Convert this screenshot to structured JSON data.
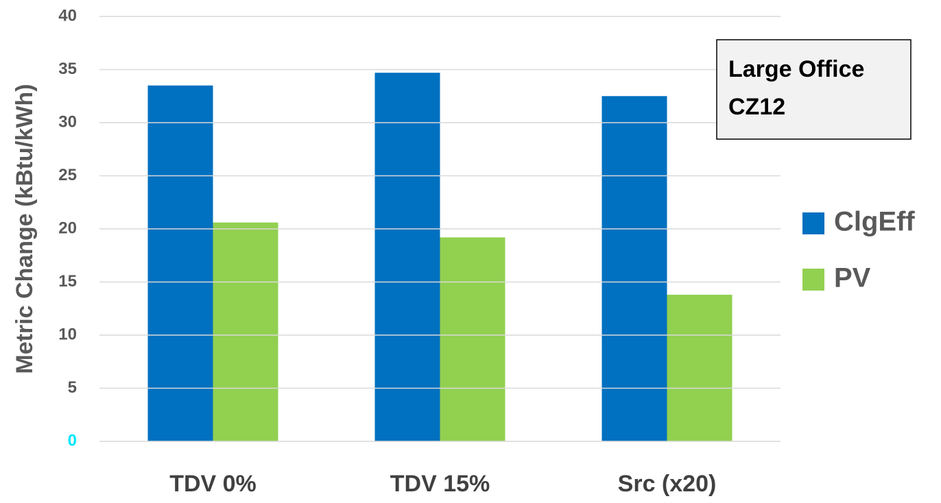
{
  "chart_data": {
    "type": "bar",
    "y_label": "Metric Change (kBtu/kWh)",
    "annotation": [
      "Large Office",
      "CZ12"
    ],
    "categories": [
      "TDV 0%",
      "TDV 15%",
      "Src (x20)"
    ],
    "series": [
      {
        "name": "ClgEff",
        "color": "#0070c0",
        "values": [
          33.5,
          34.7,
          32.5
        ]
      },
      {
        "name": "PV",
        "color": "#92d050",
        "values": [
          20.6,
          19.2,
          13.8
        ]
      }
    ],
    "ylim": [
      0,
      40
    ],
    "yticks": [
      0,
      5,
      10,
      15,
      20,
      25,
      30,
      35,
      40
    ],
    "ytick_color": "#595959",
    "first_ytick_color": "#00e5ff",
    "grid": true,
    "legend": "right"
  }
}
